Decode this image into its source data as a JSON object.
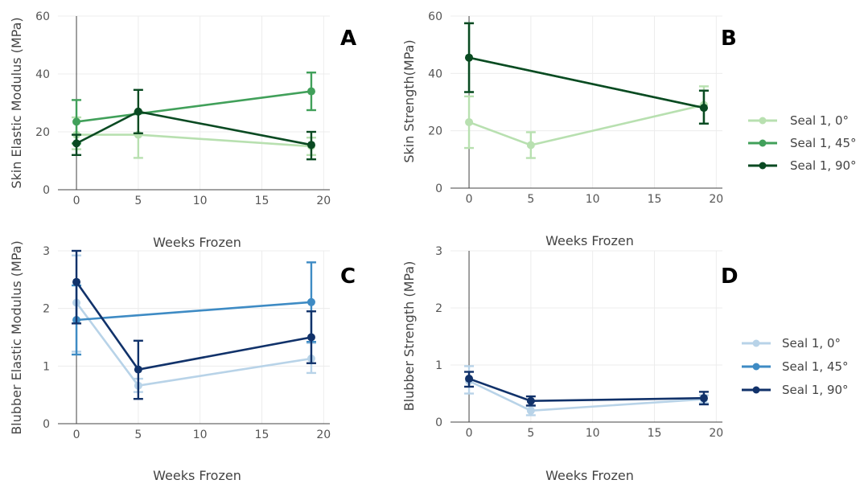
{
  "colors": {
    "green_light": "#b8e0b0",
    "green_mid": "#41a05a",
    "green_dark": "#0a4a22",
    "blue_light": "#b8d3e8",
    "blue_mid": "#3e8bc4",
    "blue_dark": "#11326a",
    "grid": "#ececec",
    "axis": "#444444"
  },
  "legends": {
    "skin": [
      "Seal 1, 0°",
      "Seal 1, 45°",
      "Seal 1, 90°"
    ],
    "blubber": [
      "Seal 1, 0°",
      "Seal 1, 45°",
      "Seal 1, 90°"
    ]
  },
  "chart_data": [
    {
      "type": "line",
      "panel": "A",
      "title": "",
      "xlabel": "Weeks Frozen",
      "ylabel": "Skin Elastic Modulus (MPa)",
      "xlim": [
        -1.5,
        20.5
      ],
      "ylim": [
        0,
        60
      ],
      "xticks": [
        0,
        5,
        10,
        15,
        20
      ],
      "yticks": [
        0,
        20,
        40,
        60
      ],
      "grid": true,
      "legend": "none",
      "series": [
        {
          "name": "Seal 1, 0°",
          "color": "green_light",
          "x": [
            0,
            5,
            19
          ],
          "y": [
            19,
            19,
            15
          ],
          "err_low": [
            14,
            11,
            12
          ],
          "err_high": [
            25,
            27,
            18
          ]
        },
        {
          "name": "Seal 1, 45°",
          "color": "green_mid",
          "x": [
            0,
            19
          ],
          "y": [
            23.5,
            34
          ],
          "err_low": [
            16,
            27.5
          ],
          "err_high": [
            31,
            40.5
          ]
        },
        {
          "name": "Seal 1, 90°",
          "color": "green_dark",
          "x": [
            0,
            5,
            19
          ],
          "y": [
            16,
            27,
            15.5
          ],
          "err_low": [
            12,
            19.5,
            10.5
          ],
          "err_high": [
            19,
            34.5,
            20
          ]
        }
      ]
    },
    {
      "type": "line",
      "panel": "B",
      "title": "",
      "xlabel": "Weeks Frozen",
      "ylabel": "Skin Strength(MPa)",
      "xlim": [
        -1.5,
        20.5
      ],
      "ylim": [
        0,
        60
      ],
      "xticks": [
        0,
        5,
        10,
        15,
        20
      ],
      "yticks": [
        0,
        20,
        40,
        60
      ],
      "grid": true,
      "legend": "right",
      "series": [
        {
          "name": "Seal 1, 0°",
          "color": "green_light",
          "x": [
            0,
            5,
            19
          ],
          "y": [
            23,
            15,
            29
          ],
          "err_low": [
            14,
            10.5,
            22.5
          ],
          "err_high": [
            32,
            19.5,
            35.5
          ]
        },
        {
          "name": "Seal 1, 45°",
          "color": "green_mid",
          "x": [
            0,
            19
          ],
          "y": [
            45.5,
            28
          ],
          "err_low": [
            33.5,
            22.5
          ],
          "err_high": [
            57.5,
            34
          ]
        },
        {
          "name": "Seal 1, 90°",
          "color": "green_dark",
          "x": [
            0,
            19
          ],
          "y": [
            45.5,
            28
          ],
          "err_low": [
            33.5,
            22.5
          ],
          "err_high": [
            57.5,
            34
          ]
        }
      ]
    },
    {
      "type": "line",
      "panel": "C",
      "title": "",
      "xlabel": "Weeks Frozen",
      "ylabel": "Blubber Elastic Modulus (MPa)",
      "xlim": [
        -1.5,
        20.5
      ],
      "ylim": [
        0,
        3
      ],
      "xticks": [
        0,
        5,
        10,
        15,
        20
      ],
      "yticks": [
        0,
        1,
        2,
        3
      ],
      "grid": true,
      "legend": "none",
      "series": [
        {
          "name": "Seal 1, 0°",
          "color": "blue_light",
          "x": [
            0,
            5,
            19
          ],
          "y": [
            2.1,
            0.66,
            1.13
          ],
          "err_low": [
            1.25,
            0.55,
            0.88
          ],
          "err_high": [
            2.92,
            0.78,
            1.4
          ]
        },
        {
          "name": "Seal 1, 45°",
          "color": "blue_mid",
          "x": [
            0,
            19
          ],
          "y": [
            1.8,
            2.11
          ],
          "err_low": [
            1.2,
            1.42
          ],
          "err_high": [
            2.4,
            2.8
          ]
        },
        {
          "name": "Seal 1, 90°",
          "color": "blue_dark",
          "x": [
            0,
            5,
            19
          ],
          "y": [
            2.46,
            0.94,
            1.5
          ],
          "err_low": [
            1.74,
            0.43,
            1.05
          ],
          "err_high": [
            3.0,
            1.44,
            1.95
          ]
        }
      ]
    },
    {
      "type": "line",
      "panel": "D",
      "title": "",
      "xlabel": "Weeks Frozen",
      "ylabel": "Blubber Strength (MPa)",
      "xlim": [
        -1.5,
        20.5
      ],
      "ylim": [
        0,
        3
      ],
      "xticks": [
        0,
        5,
        10,
        15,
        20
      ],
      "yticks": [
        0,
        1,
        2,
        3
      ],
      "grid": true,
      "legend": "right",
      "series": [
        {
          "name": "Seal 1, 0°",
          "color": "blue_light",
          "x": [
            0,
            5,
            19
          ],
          "y": [
            0.72,
            0.2,
            0.4
          ],
          "err_low": [
            0.5,
            0.12,
            0.33
          ],
          "err_high": [
            0.98,
            0.28,
            0.47
          ]
        },
        {
          "name": "Seal 1, 45°",
          "color": "blue_mid",
          "x": [],
          "y": [],
          "err_low": [],
          "err_high": []
        },
        {
          "name": "Seal 1, 90°",
          "color": "blue_dark",
          "x": [
            0,
            5,
            19
          ],
          "y": [
            0.76,
            0.37,
            0.42
          ],
          "err_low": [
            0.62,
            0.29,
            0.31
          ],
          "err_high": [
            0.88,
            0.45,
            0.53
          ]
        }
      ]
    }
  ]
}
